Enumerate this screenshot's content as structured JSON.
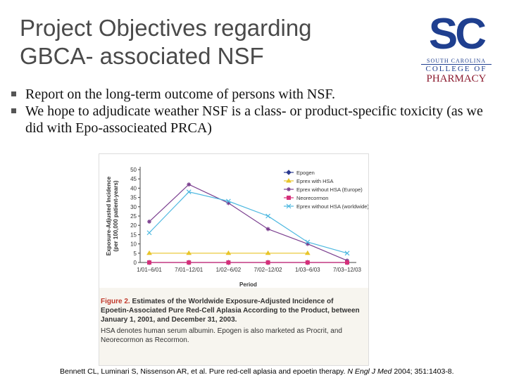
{
  "header": {
    "title_lines": [
      "Project Objectives regarding",
      "GBCA- associated NSF"
    ],
    "logo": {
      "mark": "SC",
      "line1": "SOUTH CAROLINA",
      "line2": "COLLEGE OF",
      "line3": "PHARMACY"
    }
  },
  "bullets": [
    "Report on the long-term outcome of persons with NSF.",
    "We hope to adjudicate weather NSF is a class- or product-specific toxicity (as we did with Epo-associeated PRCA)"
  ],
  "chart_data": {
    "type": "line",
    "ylabel": [
      "Exposure-Adjusted Incidence",
      "(per 100,000 patient-years)"
    ],
    "xlabel": "Period",
    "categories": [
      "1/01–6/01",
      "7/01–12/01",
      "1/02–6/02",
      "7/02–12/02",
      "1/03–6/03",
      "7/03–12/03"
    ],
    "ylim": [
      0,
      50
    ],
    "yticks": [
      0,
      5,
      10,
      15,
      20,
      25,
      30,
      35,
      40,
      45,
      50
    ],
    "legend": "upper right",
    "series": [
      {
        "name": "Epogen",
        "color": "#2b3a8f",
        "marker": "diamond",
        "values": [
          0,
          0,
          0,
          0,
          0,
          0
        ]
      },
      {
        "name": "Eprex with HSA",
        "color": "#e8c52a",
        "marker": "triangle",
        "values": [
          5,
          5,
          5,
          5,
          5,
          null
        ]
      },
      {
        "name": "Eprex without HSA (Europe)",
        "color": "#7b3f8f",
        "marker": "star",
        "values": [
          22,
          42,
          32,
          18,
          10,
          1
        ]
      },
      {
        "name": "Neorecormon",
        "color": "#d6307a",
        "marker": "square",
        "values": [
          0,
          0,
          0,
          0,
          0,
          0
        ]
      },
      {
        "name": "Eprex without HSA (worldwide)",
        "color": "#4db8e0",
        "marker": "x",
        "values": [
          16,
          38,
          33,
          25,
          11,
          5
        ]
      }
    ],
    "caption": {
      "label": "Figure 2.",
      "text": "Estimates of the Worldwide Exposure-Adjusted Incidence of Epoetin-Associated Pure Red-Cell Aplasia According to the Product, between January 1, 2001, and December 31, 2003.",
      "note": "HSA denotes human serum albumin. Epogen is also marketed as Procrit, and Neorecormon as Recormon."
    }
  },
  "citation": {
    "authors": "Bennett CL, Luminari S, Nissenson AR, et al. Pure red-cell aplasia and epoetin therapy.",
    "journal": "N Engl J Med",
    "details": "2004; 351:1403-8."
  }
}
